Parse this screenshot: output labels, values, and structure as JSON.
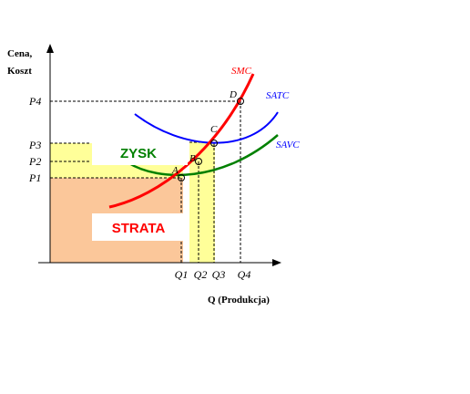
{
  "chart_data": {
    "type": "line",
    "title": "",
    "xlabel": "Q (Produkcja)",
    "ylabel_line1": "Cena,",
    "ylabel_line2": "Koszt",
    "x_ticks": [
      "Q1",
      "Q2",
      "Q3",
      "Q4"
    ],
    "y_ticks": [
      "P4",
      "P3",
      "P2",
      "P1"
    ],
    "series": [
      {
        "name": "SMC",
        "color": "#ff0000"
      },
      {
        "name": "SATC",
        "color": "#0000ff"
      },
      {
        "name": "SAVC",
        "color": "#008000"
      }
    ],
    "points": [
      "A",
      "B",
      "C",
      "D"
    ],
    "regions": [
      {
        "label": "ZYSK",
        "color": "#008000",
        "fill": "#ffff99"
      },
      {
        "label": "STRATA",
        "color": "#ff0000",
        "fill": "#fbc79a"
      }
    ],
    "grid": false,
    "legend": "none"
  }
}
